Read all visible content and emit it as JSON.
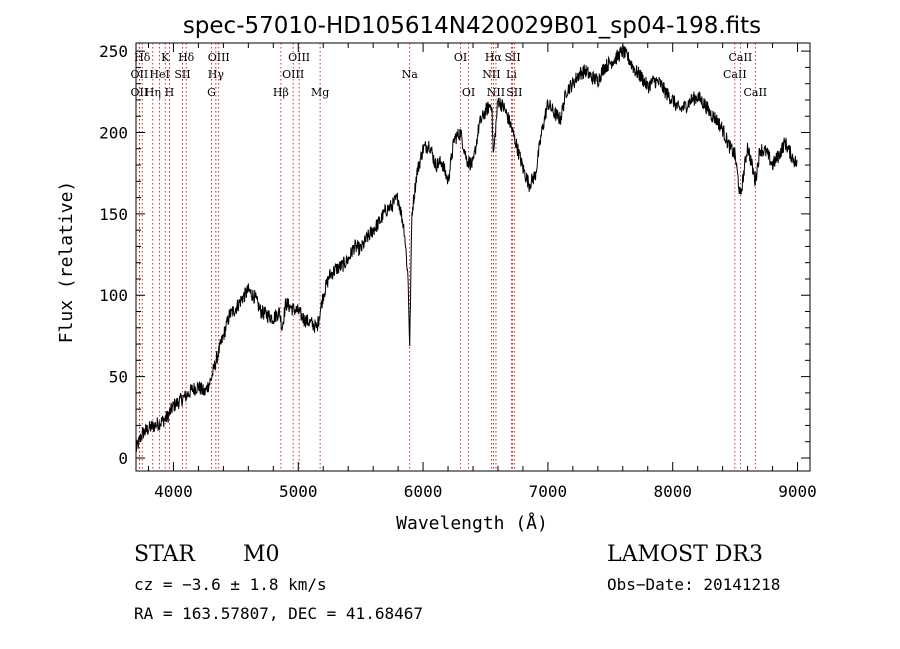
{
  "chart_data": {
    "type": "line",
    "title": "spec-57010-HD105614N420029B01_sp04-198.fits",
    "xlabel": "Wavelength (Å)",
    "ylabel": "Flux (relative)",
    "xlim": [
      3700,
      9100
    ],
    "ylim": [
      -8,
      255
    ],
    "xticks": [
      4000,
      5000,
      6000,
      7000,
      8000,
      9000
    ],
    "yticks": [
      0,
      50,
      100,
      150,
      200,
      250
    ],
    "grid": false,
    "line_color": "#000000",
    "marker_color": "#b00000",
    "spectral_lines": [
      {
        "label": "Hδ",
        "x": 3750,
        "row": 0
      },
      {
        "label": "OII",
        "x": 3727,
        "row": 1
      },
      {
        "label": "OII",
        "x": 3727,
        "row": 2
      },
      {
        "label": "K",
        "x": 3934,
        "row": 0
      },
      {
        "label": "HeI",
        "x": 3889,
        "row": 1
      },
      {
        "label": "Hη",
        "x": 3835,
        "row": 2
      },
      {
        "label": "H",
        "x": 3968,
        "row": 2
      },
      {
        "label": "Hδ",
        "x": 4102,
        "row": 0
      },
      {
        "label": "SII",
        "x": 4072,
        "row": 1
      },
      {
        "label": "OIII",
        "x": 4363,
        "row": 0
      },
      {
        "label": "Hγ",
        "x": 4340,
        "row": 1
      },
      {
        "label": "G",
        "x": 4305,
        "row": 2
      },
      {
        "label": "OIII",
        "x": 5007,
        "row": 0
      },
      {
        "label": "OIII",
        "x": 4959,
        "row": 1
      },
      {
        "label": "Hβ",
        "x": 4861,
        "row": 2
      },
      {
        "label": "Mg",
        "x": 5175,
        "row": 2
      },
      {
        "label": "Na",
        "x": 5893,
        "row": 1
      },
      {
        "label": "OI",
        "x": 6300,
        "row": 0
      },
      {
        "label": "OI",
        "x": 6364,
        "row": 2
      },
      {
        "label": "Hα",
        "x": 6563,
        "row": 0
      },
      {
        "label": "SII",
        "x": 6717,
        "row": 0
      },
      {
        "label": "NII",
        "x": 6548,
        "row": 1
      },
      {
        "label": "Li",
        "x": 6708,
        "row": 1
      },
      {
        "label": "NII",
        "x": 6584,
        "row": 2
      },
      {
        "label": "SII",
        "x": 6731,
        "row": 2
      },
      {
        "label": "CaII",
        "x": 8542,
        "row": 0
      },
      {
        "label": "CaII",
        "x": 8498,
        "row": 1
      },
      {
        "label": "CaII",
        "x": 8662,
        "row": 2
      }
    ],
    "series": [
      {
        "name": "spectrum",
        "x": [
          3700,
          3750,
          3800,
          3850,
          3900,
          3950,
          4000,
          4050,
          4100,
          4150,
          4200,
          4250,
          4300,
          4350,
          4400,
          4450,
          4500,
          4550,
          4600,
          4650,
          4700,
          4750,
          4800,
          4850,
          4870,
          4900,
          4950,
          5000,
          5050,
          5100,
          5150,
          5200,
          5250,
          5300,
          5350,
          5400,
          5450,
          5500,
          5550,
          5600,
          5650,
          5700,
          5750,
          5800,
          5850,
          5880,
          5893,
          5910,
          5950,
          6000,
          6050,
          6100,
          6150,
          6200,
          6250,
          6300,
          6350,
          6400,
          6450,
          6500,
          6550,
          6563,
          6600,
          6650,
          6700,
          6750,
          6800,
          6850,
          6900,
          6950,
          7000,
          7050,
          7100,
          7150,
          7200,
          7250,
          7300,
          7350,
          7400,
          7450,
          7500,
          7550,
          7600,
          7650,
          7700,
          7750,
          7800,
          7850,
          7900,
          7950,
          8000,
          8050,
          8100,
          8150,
          8200,
          8250,
          8300,
          8350,
          8400,
          8450,
          8500,
          8542,
          8600,
          8662,
          8700,
          8750,
          8800,
          8850,
          8900,
          8950,
          9000
        ],
        "values": [
          5,
          15,
          18,
          20,
          22,
          25,
          32,
          35,
          38,
          42,
          44,
          40,
          48,
          62,
          75,
          88,
          92,
          98,
          103,
          99,
          90,
          88,
          86,
          90,
          80,
          95,
          92,
          90,
          85,
          83,
          80,
          100,
          112,
          116,
          118,
          122,
          130,
          128,
          135,
          140,
          145,
          152,
          155,
          160,
          140,
          110,
          68,
          150,
          175,
          190,
          193,
          180,
          182,
          170,
          196,
          200,
          183,
          180,
          205,
          213,
          218,
          185,
          220,
          215,
          205,
          192,
          178,
          168,
          174,
          200,
          218,
          212,
          208,
          226,
          230,
          236,
          238,
          234,
          232,
          240,
          243,
          246,
          250,
          245,
          238,
          234,
          228,
          232,
          230,
          224,
          220,
          214,
          216,
          220,
          222,
          218,
          212,
          208,
          202,
          192,
          186,
          160,
          192,
          170,
          190,
          188,
          180,
          186,
          194,
          186,
          180
        ]
      }
    ]
  },
  "info": {
    "object_class": "STAR",
    "subclass": "M0",
    "survey": "LAMOST DR3",
    "cz": "cz = −3.6 ± 1.8 km/s",
    "obs_date": "Obs−Date: 20141218",
    "coords": "RA = 163.57807, DEC =  41.68467"
  }
}
